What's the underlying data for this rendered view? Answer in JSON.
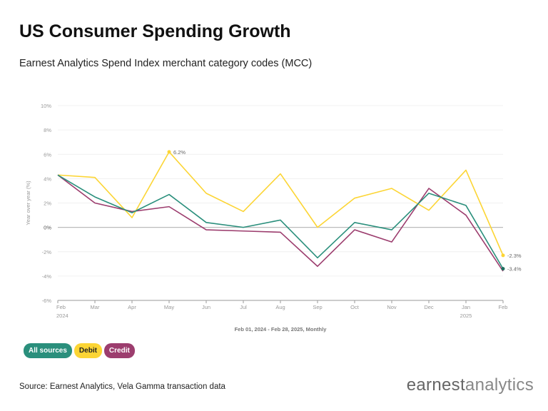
{
  "title": "US Consumer Spending Growth",
  "subtitle": "Earnest Analytics Spend Index merchant category codes (MCC)",
  "source": "Source: Earnest Analytics, Vela Gamma transaction data",
  "logo": {
    "part1": "earnest",
    "part2": "analytics"
  },
  "chart_data": {
    "type": "line",
    "ylabel": "Year over year (%)",
    "xlabel": "Feb 01, 2024 - Feb 28, 2025, Monthly",
    "ylim": [
      -6,
      10
    ],
    "yticks": [
      "10%",
      "8%",
      "6%",
      "4%",
      "2%",
      "0%",
      "-2%",
      "-4%",
      "-6%"
    ],
    "ytick_values": [
      10,
      8,
      6,
      4,
      2,
      0,
      -2,
      -4,
      -6
    ],
    "categories": [
      "Feb",
      "Mar",
      "Apr",
      "May",
      "Jun",
      "Jul",
      "Aug",
      "Sep",
      "Oct",
      "Nov",
      "Dec",
      "Jan",
      "Feb"
    ],
    "year_labels": {
      "0": "2024",
      "11": "2025"
    },
    "grid": true,
    "series": [
      {
        "name": "Debit",
        "color": "#fcd535",
        "values": [
          4.3,
          4.1,
          0.8,
          6.2,
          2.8,
          1.3,
          4.4,
          0.0,
          2.4,
          3.2,
          1.4,
          4.7,
          -2.3
        ]
      },
      {
        "name": "Credit",
        "color": "#9c3d6e",
        "values": [
          4.3,
          2.0,
          1.3,
          1.7,
          -0.2,
          -0.3,
          -0.4,
          -3.2,
          -0.2,
          -1.2,
          3.2,
          1.0,
          -3.6
        ]
      },
      {
        "name": "All sources",
        "color": "#2a8f7c",
        "values": [
          4.3,
          2.5,
          1.2,
          2.7,
          0.4,
          0.0,
          0.6,
          -2.5,
          0.4,
          -0.2,
          2.8,
          1.8,
          -3.4
        ]
      }
    ],
    "annotations": [
      {
        "series": "Debit",
        "index": 3,
        "text": "6.2%"
      },
      {
        "series": "Debit",
        "index": 12,
        "text": "-2.3%"
      },
      {
        "series": "All sources",
        "index": 12,
        "text": "-3.4%"
      }
    ],
    "legend": {
      "placement": "bottom-left",
      "items": [
        {
          "label": "All sources",
          "color": "#2a8f7c",
          "text_color": "#ffffff"
        },
        {
          "label": "Debit",
          "color": "#fcd535",
          "text_color": "#222222"
        },
        {
          "label": "Credit",
          "color": "#9c3d6e",
          "text_color": "#ffffff"
        }
      ]
    }
  }
}
